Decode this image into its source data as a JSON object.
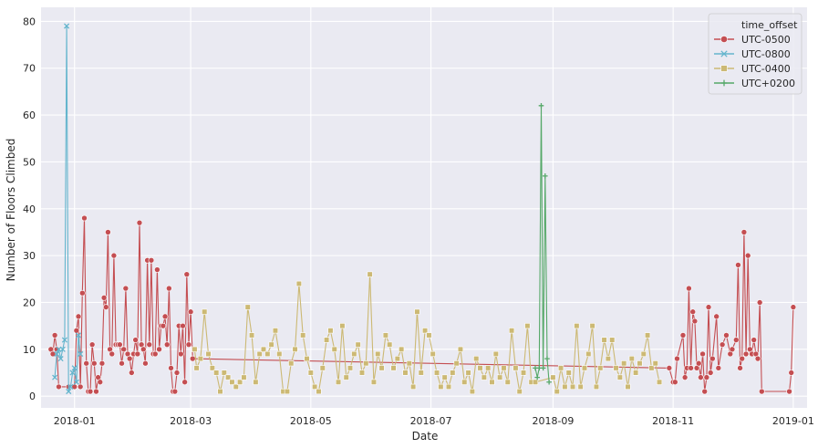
{
  "chart_data": {
    "type": "line",
    "title": "",
    "xlabel": "Date",
    "ylabel": "Number of Floors Climbed",
    "xlim": [
      "2017-12-15",
      "2019-01-08"
    ],
    "ylim": [
      -2.5,
      83
    ],
    "grid": true,
    "legend_position": "top-right",
    "legend_title": "time_offset",
    "x_ticks": [
      {
        "date": "2018-01-01",
        "label": "2018-01"
      },
      {
        "date": "2018-03-01",
        "label": "2018-03"
      },
      {
        "date": "2018-05-01",
        "label": "2018-05"
      },
      {
        "date": "2018-07-01",
        "label": "2018-07"
      },
      {
        "date": "2018-09-01",
        "label": "2018-09"
      },
      {
        "date": "2018-11-01",
        "label": "2018-11"
      },
      {
        "date": "2019-01-01",
        "label": "2019-01"
      }
    ],
    "y_ticks": [
      0,
      10,
      20,
      30,
      40,
      50,
      60,
      70,
      80
    ],
    "series": [
      {
        "name": "UTC-0500",
        "color": "#c44e52",
        "marker": "circle",
        "points": [
          [
            "2017-12-20",
            10
          ],
          [
            "2017-12-21",
            9
          ],
          [
            "2017-12-22",
            13
          ],
          [
            "2017-12-23",
            10
          ],
          [
            "2017-12-24",
            2
          ],
          [
            "2017-12-29",
            2
          ],
          [
            "2018-01-01",
            2
          ],
          [
            "2018-01-02",
            14
          ],
          [
            "2018-01-03",
            17
          ],
          [
            "2018-01-04",
            2
          ],
          [
            "2018-01-05",
            22
          ],
          [
            "2018-01-06",
            38
          ],
          [
            "2018-01-07",
            7
          ],
          [
            "2018-01-08",
            1
          ],
          [
            "2018-01-09",
            1
          ],
          [
            "2018-01-10",
            11
          ],
          [
            "2018-01-11",
            7
          ],
          [
            "2018-01-12",
            1
          ],
          [
            "2018-01-13",
            4
          ],
          [
            "2018-01-14",
            3
          ],
          [
            "2018-01-15",
            7
          ],
          [
            "2018-01-16",
            21
          ],
          [
            "2018-01-17",
            19
          ],
          [
            "2018-01-18",
            35
          ],
          [
            "2018-01-19",
            10
          ],
          [
            "2018-01-20",
            9
          ],
          [
            "2018-01-21",
            30
          ],
          [
            "2018-01-22",
            11
          ],
          [
            "2018-01-23",
            11
          ],
          [
            "2018-01-24",
            11
          ],
          [
            "2018-01-25",
            7
          ],
          [
            "2018-01-26",
            10
          ],
          [
            "2018-01-27",
            23
          ],
          [
            "2018-01-28",
            9
          ],
          [
            "2018-01-29",
            8
          ],
          [
            "2018-01-30",
            5
          ],
          [
            "2018-01-31",
            9
          ],
          [
            "2018-02-01",
            12
          ],
          [
            "2018-02-02",
            9
          ],
          [
            "2018-02-03",
            37
          ],
          [
            "2018-02-04",
            11
          ],
          [
            "2018-02-05",
            10
          ],
          [
            "2018-02-06",
            7
          ],
          [
            "2018-02-07",
            29
          ],
          [
            "2018-02-08",
            11
          ],
          [
            "2018-02-09",
            29
          ],
          [
            "2018-02-10",
            9
          ],
          [
            "2018-02-11",
            9
          ],
          [
            "2018-02-12",
            27
          ],
          [
            "2018-02-13",
            10
          ],
          [
            "2018-02-14",
            15
          ],
          [
            "2018-02-15",
            15
          ],
          [
            "2018-02-16",
            17
          ],
          [
            "2018-02-17",
            11
          ],
          [
            "2018-02-18",
            23
          ],
          [
            "2018-02-19",
            6
          ],
          [
            "2018-02-20",
            1
          ],
          [
            "2018-02-21",
            1
          ],
          [
            "2018-02-22",
            5
          ],
          [
            "2018-02-23",
            15
          ],
          [
            "2018-02-24",
            9
          ],
          [
            "2018-02-25",
            15
          ],
          [
            "2018-02-26",
            3
          ],
          [
            "2018-02-27",
            26
          ],
          [
            "2018-02-28",
            11
          ],
          [
            "2018-03-01",
            18
          ],
          [
            "2018-03-02",
            8
          ],
          [
            "2018-10-30",
            6
          ],
          [
            "2018-11-01",
            3
          ],
          [
            "2018-11-02",
            3
          ],
          [
            "2018-11-03",
            8
          ],
          [
            "2018-11-06",
            13
          ],
          [
            "2018-11-07",
            4
          ],
          [
            "2018-11-08",
            6
          ],
          [
            "2018-11-09",
            23
          ],
          [
            "2018-11-10",
            6
          ],
          [
            "2018-11-11",
            18
          ],
          [
            "2018-11-12",
            16
          ],
          [
            "2018-11-13",
            6
          ],
          [
            "2018-11-14",
            7
          ],
          [
            "2018-11-15",
            4
          ],
          [
            "2018-11-16",
            9
          ],
          [
            "2018-11-17",
            1
          ],
          [
            "2018-11-18",
            4
          ],
          [
            "2018-11-19",
            19
          ],
          [
            "2018-11-20",
            5
          ],
          [
            "2018-11-21",
            8
          ],
          [
            "2018-11-23",
            17
          ],
          [
            "2018-11-24",
            6
          ],
          [
            "2018-11-26",
            11
          ],
          [
            "2018-11-28",
            13
          ],
          [
            "2018-11-30",
            9
          ],
          [
            "2018-12-01",
            10
          ],
          [
            "2018-12-03",
            12
          ],
          [
            "2018-12-04",
            28
          ],
          [
            "2018-12-05",
            6
          ],
          [
            "2018-12-06",
            8
          ],
          [
            "2018-12-07",
            35
          ],
          [
            "2018-12-08",
            9
          ],
          [
            "2018-12-09",
            30
          ],
          [
            "2018-12-10",
            10
          ],
          [
            "2018-12-11",
            9
          ],
          [
            "2018-12-12",
            12
          ],
          [
            "2018-12-13",
            9
          ],
          [
            "2018-12-14",
            8
          ],
          [
            "2018-12-15",
            20
          ],
          [
            "2018-12-16",
            1
          ],
          [
            "2018-12-30",
            1
          ],
          [
            "2018-12-31",
            5
          ],
          [
            "2019-01-01",
            19
          ]
        ]
      },
      {
        "name": "UTC-0800",
        "color": "#64b5cd",
        "marker": "x",
        "points": [
          [
            "2017-12-22",
            4
          ],
          [
            "2017-12-23",
            9
          ],
          [
            "2017-12-24",
            10
          ],
          [
            "2017-12-25",
            8
          ],
          [
            "2017-12-26",
            10
          ],
          [
            "2017-12-27",
            12
          ],
          [
            "2017-12-28",
            79
          ],
          [
            "2017-12-29",
            1
          ],
          [
            "2017-12-30",
            2
          ],
          [
            "2017-12-31",
            5
          ],
          [
            "2018-01-01",
            6
          ],
          [
            "2018-01-02",
            3
          ],
          [
            "2018-01-03",
            13
          ],
          [
            "2018-01-04",
            9
          ]
        ]
      },
      {
        "name": "UTC-0400",
        "color": "#ccb974",
        "marker": "square",
        "points": [
          [
            "2018-03-03",
            10
          ],
          [
            "2018-03-04",
            6
          ],
          [
            "2018-03-06",
            8
          ],
          [
            "2018-03-08",
            18
          ],
          [
            "2018-03-10",
            9
          ],
          [
            "2018-03-12",
            6
          ],
          [
            "2018-03-14",
            5
          ],
          [
            "2018-03-16",
            1
          ],
          [
            "2018-03-18",
            5
          ],
          [
            "2018-03-20",
            4
          ],
          [
            "2018-03-22",
            3
          ],
          [
            "2018-03-24",
            2
          ],
          [
            "2018-03-26",
            3
          ],
          [
            "2018-03-28",
            4
          ],
          [
            "2018-03-30",
            19
          ],
          [
            "2018-04-01",
            13
          ],
          [
            "2018-04-03",
            3
          ],
          [
            "2018-04-05",
            9
          ],
          [
            "2018-04-07",
            10
          ],
          [
            "2018-04-09",
            9
          ],
          [
            "2018-04-11",
            11
          ],
          [
            "2018-04-13",
            14
          ],
          [
            "2018-04-15",
            9
          ],
          [
            "2018-04-17",
            1
          ],
          [
            "2018-04-19",
            1
          ],
          [
            "2018-04-21",
            7
          ],
          [
            "2018-04-23",
            10
          ],
          [
            "2018-04-25",
            24
          ],
          [
            "2018-04-27",
            13
          ],
          [
            "2018-04-29",
            8
          ],
          [
            "2018-05-01",
            5
          ],
          [
            "2018-05-03",
            2
          ],
          [
            "2018-05-05",
            1
          ],
          [
            "2018-05-07",
            6
          ],
          [
            "2018-05-09",
            12
          ],
          [
            "2018-05-11",
            14
          ],
          [
            "2018-05-13",
            10
          ],
          [
            "2018-05-15",
            3
          ],
          [
            "2018-05-17",
            15
          ],
          [
            "2018-05-19",
            4
          ],
          [
            "2018-05-21",
            6
          ],
          [
            "2018-05-23",
            9
          ],
          [
            "2018-05-25",
            11
          ],
          [
            "2018-05-27",
            5
          ],
          [
            "2018-05-29",
            7
          ],
          [
            "2018-05-31",
            26
          ],
          [
            "2018-06-02",
            3
          ],
          [
            "2018-06-04",
            9
          ],
          [
            "2018-06-06",
            6
          ],
          [
            "2018-06-08",
            13
          ],
          [
            "2018-06-10",
            11
          ],
          [
            "2018-06-12",
            6
          ],
          [
            "2018-06-14",
            8
          ],
          [
            "2018-06-16",
            10
          ],
          [
            "2018-06-18",
            5
          ],
          [
            "2018-06-20",
            7
          ],
          [
            "2018-06-22",
            2
          ],
          [
            "2018-06-24",
            18
          ],
          [
            "2018-06-26",
            5
          ],
          [
            "2018-06-28",
            14
          ],
          [
            "2018-06-30",
            13
          ],
          [
            "2018-07-02",
            9
          ],
          [
            "2018-07-04",
            5
          ],
          [
            "2018-07-06",
            2
          ],
          [
            "2018-07-08",
            4
          ],
          [
            "2018-07-10",
            2
          ],
          [
            "2018-07-12",
            5
          ],
          [
            "2018-07-14",
            7
          ],
          [
            "2018-07-16",
            10
          ],
          [
            "2018-07-18",
            3
          ],
          [
            "2018-07-20",
            5
          ],
          [
            "2018-07-22",
            1
          ],
          [
            "2018-07-24",
            8
          ],
          [
            "2018-07-26",
            6
          ],
          [
            "2018-07-28",
            4
          ],
          [
            "2018-07-30",
            6
          ],
          [
            "2018-08-01",
            3
          ],
          [
            "2018-08-03",
            9
          ],
          [
            "2018-08-05",
            4
          ],
          [
            "2018-08-07",
            6
          ],
          [
            "2018-08-09",
            3
          ],
          [
            "2018-08-11",
            14
          ],
          [
            "2018-08-13",
            6
          ],
          [
            "2018-08-15",
            1
          ],
          [
            "2018-08-17",
            5
          ],
          [
            "2018-08-19",
            15
          ],
          [
            "2018-08-21",
            3
          ],
          [
            "2018-08-23",
            3
          ],
          [
            "2018-09-01",
            4
          ],
          [
            "2018-09-03",
            1
          ],
          [
            "2018-09-05",
            6
          ],
          [
            "2018-09-07",
            2
          ],
          [
            "2018-09-09",
            5
          ],
          [
            "2018-09-11",
            2
          ],
          [
            "2018-09-13",
            15
          ],
          [
            "2018-09-15",
            2
          ],
          [
            "2018-09-17",
            6
          ],
          [
            "2018-09-19",
            9
          ],
          [
            "2018-09-21",
            15
          ],
          [
            "2018-09-23",
            2
          ],
          [
            "2018-09-25",
            6
          ],
          [
            "2018-09-27",
            12
          ],
          [
            "2018-09-29",
            8
          ],
          [
            "2018-10-01",
            12
          ],
          [
            "2018-10-03",
            6
          ],
          [
            "2018-10-05",
            4
          ],
          [
            "2018-10-07",
            7
          ],
          [
            "2018-10-09",
            2
          ],
          [
            "2018-10-11",
            8
          ],
          [
            "2018-10-13",
            5
          ],
          [
            "2018-10-15",
            7
          ],
          [
            "2018-10-17",
            9
          ],
          [
            "2018-10-19",
            13
          ],
          [
            "2018-10-21",
            6
          ],
          [
            "2018-10-23",
            7
          ],
          [
            "2018-10-25",
            3
          ]
        ]
      },
      {
        "name": "UTC+0200",
        "color": "#55a868",
        "marker": "plus",
        "points": [
          [
            "2018-08-23",
            6
          ],
          [
            "2018-08-24",
            4
          ],
          [
            "2018-08-25",
            6
          ],
          [
            "2018-08-26",
            62
          ],
          [
            "2018-08-27",
            6
          ],
          [
            "2018-08-28",
            47
          ],
          [
            "2018-08-29",
            8
          ],
          [
            "2018-08-30",
            3
          ]
        ]
      }
    ]
  }
}
